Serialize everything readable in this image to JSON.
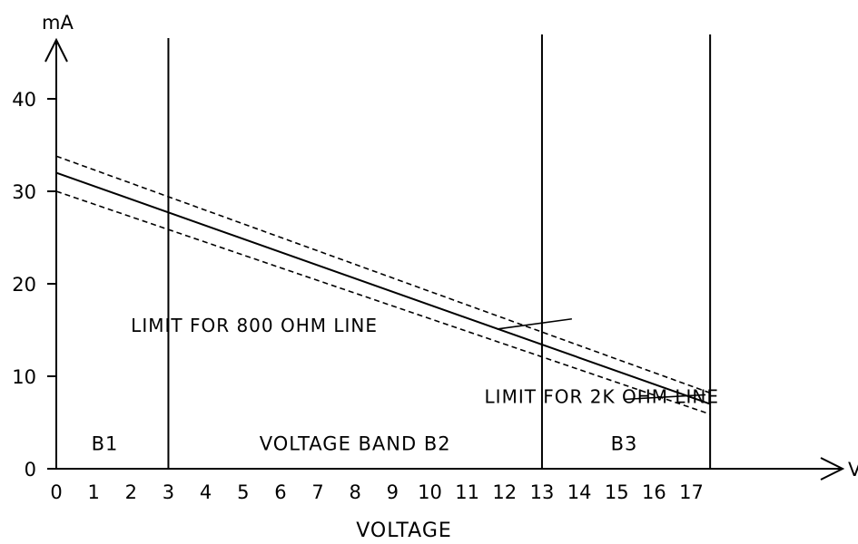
{
  "chart_data": {
    "type": "line",
    "title": "",
    "xlabel": "VOLTAGE",
    "ylabel": "",
    "x_unit": "V",
    "y_unit": "mA",
    "xlim": [
      0,
      17.5
    ],
    "ylim": [
      0,
      45
    ],
    "x_ticks": [
      "0",
      "1",
      "2",
      "3",
      "4",
      "5",
      "6",
      "7",
      "8",
      "9",
      "10",
      "11",
      "12",
      "13",
      "14",
      "15",
      "16",
      "17"
    ],
    "y_ticks": [
      "0",
      "10",
      "20",
      "30",
      "40"
    ],
    "grid": false,
    "legend": "none",
    "series": [
      {
        "style": "solid",
        "x": [
          0,
          17.5
        ],
        "y": [
          32,
          7
        ]
      },
      {
        "style": "dashed",
        "x": [
          0,
          17.5
        ],
        "y": [
          33.8,
          8.2
        ]
      },
      {
        "style": "dashed",
        "x": [
          0,
          17.5
        ],
        "y": [
          30,
          5.9
        ]
      }
    ],
    "band_boundaries": [
      3,
      13,
      17.5
    ],
    "band_labels": [
      {
        "text": "B1",
        "x": 1.3,
        "y": 2
      },
      {
        "text": "VOLTAGE BAND B2",
        "x": 8,
        "y": 2
      },
      {
        "text": "B3",
        "x": 15.2,
        "y": 2
      }
    ],
    "annotations": [
      {
        "text": "LIMIT FOR 800 OHM LINE",
        "text_x": 5.3,
        "text_y": 14.8,
        "arrow_from": [
          11.8,
          15.1
        ],
        "arrow_to": [
          13.8,
          16.2
        ]
      },
      {
        "text": "LIMIT FOR 2K OHM LINE",
        "text_x": 14.6,
        "text_y": 7.1,
        "arrow_from": [
          17.5,
          7.5
        ],
        "arrow_to": [
          17.5,
          8.0
        ]
      }
    ]
  }
}
